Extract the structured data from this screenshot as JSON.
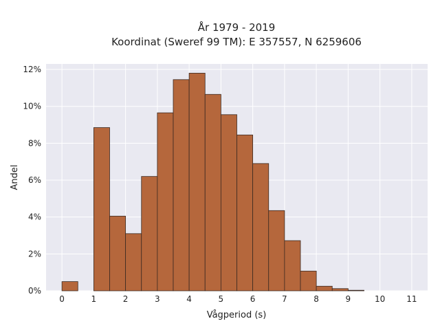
{
  "title_line1": "År 1979 - 2019",
  "title_line2": "Koordinat (Sweref 99 TM): E 357557, N 6259606",
  "chart_data": {
    "type": "bar",
    "title": "År 1979 - 2019\nKoordinat (Sweref 99 TM): E 357557, N 6259606",
    "xlabel": "Vågperiod (s)",
    "ylabel": "Andel",
    "bin_width": 0.5,
    "xlim": [
      -0.5,
      11.5
    ],
    "ylim": [
      0,
      12.3
    ],
    "x_ticks": [
      0,
      1,
      2,
      3,
      4,
      5,
      6,
      7,
      8,
      9,
      10,
      11
    ],
    "x_tick_labels": [
      "0",
      "1",
      "2",
      "3",
      "4",
      "5",
      "6",
      "7",
      "8",
      "9",
      "10",
      "11"
    ],
    "y_ticks": [
      0,
      2,
      4,
      6,
      8,
      10,
      12
    ],
    "y_tick_labels": [
      "0%",
      "2%",
      "4%",
      "6%",
      "8%",
      "10%",
      "12%"
    ],
    "bins": [
      {
        "start": 0.0,
        "value": 0.5
      },
      {
        "start": 1.0,
        "value": 8.85
      },
      {
        "start": 1.5,
        "value": 4.05
      },
      {
        "start": 2.0,
        "value": 3.1
      },
      {
        "start": 2.5,
        "value": 6.2
      },
      {
        "start": 3.0,
        "value": 9.65
      },
      {
        "start": 3.5,
        "value": 11.45
      },
      {
        "start": 4.0,
        "value": 11.8
      },
      {
        "start": 4.5,
        "value": 10.65
      },
      {
        "start": 5.0,
        "value": 9.55
      },
      {
        "start": 5.5,
        "value": 8.45
      },
      {
        "start": 6.0,
        "value": 6.9
      },
      {
        "start": 6.5,
        "value": 4.35
      },
      {
        "start": 7.0,
        "value": 2.72
      },
      {
        "start": 7.5,
        "value": 1.07
      },
      {
        "start": 8.0,
        "value": 0.25
      },
      {
        "start": 8.5,
        "value": 0.12
      },
      {
        "start": 9.0,
        "value": 0.03
      }
    ],
    "grid": true,
    "colors": {
      "bar_fill": "#b5673c",
      "bar_edge": "#3b2a22",
      "plot_bg": "#e9e9f1",
      "grid": "#ffffff"
    }
  }
}
